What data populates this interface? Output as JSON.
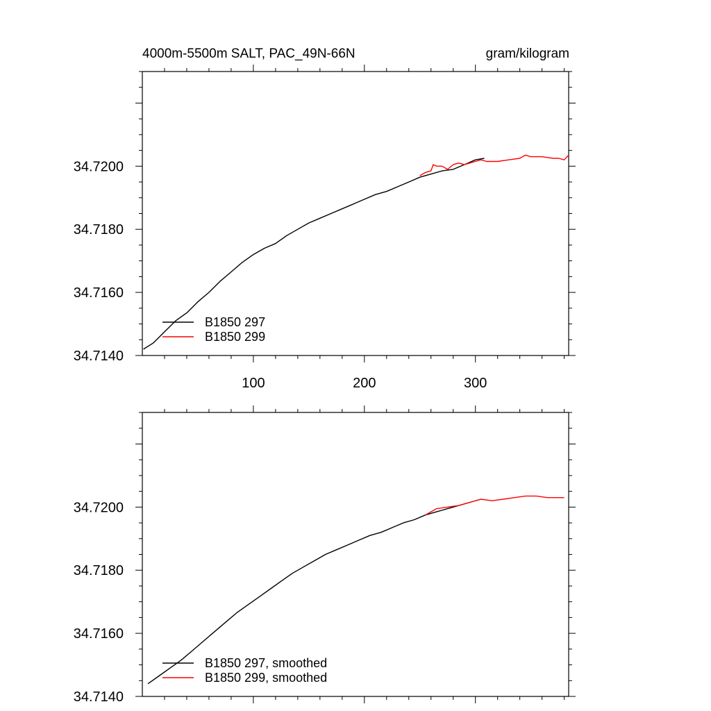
{
  "header": {
    "title_left": "4000m-5500m SALT, PAC_49N-66N",
    "title_right": "gram/kilogram"
  },
  "chart_data": [
    {
      "type": "line",
      "xlim": [
        0,
        384
      ],
      "ylim": [
        34.714,
        34.723
      ],
      "xticks": [
        100,
        200,
        300
      ],
      "xtick_labels": [
        "100",
        "200",
        "300"
      ],
      "yticks": [
        34.714,
        34.716,
        34.718,
        34.72
      ],
      "ytick_labels": [
        "34.7140",
        "34.7160",
        "34.7180",
        "34.7200"
      ],
      "grid": false,
      "legend_position": "bottom-left",
      "series": [
        {
          "name": "B1850 297",
          "color": "#000000",
          "x": [
            1,
            10,
            20,
            30,
            40,
            50,
            60,
            70,
            80,
            90,
            100,
            110,
            120,
            130,
            140,
            150,
            160,
            170,
            180,
            190,
            200,
            210,
            220,
            230,
            240,
            250,
            260,
            270,
            280,
            290,
            300,
            308
          ],
          "y": [
            34.7142,
            34.7144,
            34.71475,
            34.7151,
            34.71535,
            34.7157,
            34.716,
            34.71635,
            34.71665,
            34.71695,
            34.7172,
            34.7174,
            34.71755,
            34.7178,
            34.718,
            34.7182,
            34.71835,
            34.7185,
            34.71865,
            34.7188,
            34.71895,
            34.7191,
            34.7192,
            34.71935,
            34.7195,
            34.71965,
            34.71975,
            34.71985,
            34.7199,
            34.72005,
            34.7202,
            34.72025
          ]
        },
        {
          "name": "B1850 299",
          "color": "#ff0000",
          "x": [
            250,
            255,
            260,
            262,
            265,
            270,
            275,
            280,
            285,
            290,
            295,
            300,
            305,
            310,
            320,
            330,
            340,
            345,
            350,
            360,
            370,
            375,
            380,
            384
          ],
          "y": [
            34.7197,
            34.7198,
            34.71985,
            34.72005,
            34.72,
            34.72,
            34.7199,
            34.72005,
            34.7201,
            34.72005,
            34.7201,
            34.72015,
            34.7202,
            34.72015,
            34.72015,
            34.7202,
            34.72025,
            34.72035,
            34.7203,
            34.7203,
            34.72025,
            34.72025,
            34.7202,
            34.72035
          ]
        }
      ]
    },
    {
      "type": "line",
      "xlim": [
        0,
        384
      ],
      "ylim": [
        34.714,
        34.723
      ],
      "xticks": [
        100,
        200,
        300
      ],
      "yticks": [
        34.714,
        34.716,
        34.718,
        34.72
      ],
      "ytick_labels": [
        "34.7140",
        "34.7160",
        "34.7180",
        "34.7200"
      ],
      "grid": false,
      "legend_position": "bottom-left",
      "series": [
        {
          "name": "B1850 297, smoothed",
          "color": "#000000",
          "x": [
            5,
            15,
            25,
            35,
            45,
            55,
            65,
            75,
            85,
            95,
            105,
            115,
            125,
            135,
            145,
            155,
            165,
            175,
            185,
            195,
            205,
            215,
            225,
            235,
            245,
            255,
            265,
            275,
            285,
            295,
            305
          ],
          "y": [
            34.7144,
            34.71465,
            34.7149,
            34.71515,
            34.71545,
            34.71575,
            34.71605,
            34.71635,
            34.71665,
            34.7169,
            34.71715,
            34.7174,
            34.71765,
            34.7179,
            34.7181,
            34.7183,
            34.7185,
            34.71865,
            34.7188,
            34.71895,
            34.7191,
            34.7192,
            34.71935,
            34.7195,
            34.7196,
            34.71975,
            34.71985,
            34.71995,
            34.72005,
            34.72015,
            34.72025
          ]
        },
        {
          "name": "B1850 299, smoothed",
          "color": "#ff0000",
          "x": [
            255,
            260,
            265,
            275,
            285,
            295,
            305,
            315,
            325,
            335,
            345,
            355,
            365,
            375,
            380
          ],
          "y": [
            34.71975,
            34.71985,
            34.71995,
            34.72,
            34.72005,
            34.72015,
            34.72025,
            34.7202,
            34.72025,
            34.7203,
            34.72035,
            34.72035,
            34.7203,
            34.7203,
            34.7203
          ]
        }
      ]
    }
  ]
}
